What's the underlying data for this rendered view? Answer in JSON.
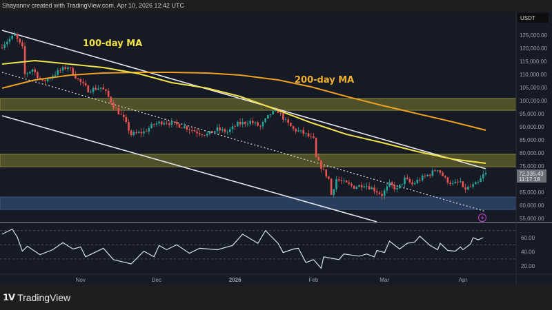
{
  "header": {
    "attribution": "Shayannv created with TradingView.com, Apr 10, 2026 12:42 UTC"
  },
  "footer": {
    "brand": "TradingView"
  },
  "price_axis": {
    "currency": "USDT",
    "last_price": "72,335.43",
    "countdown": "11:17:18"
  },
  "colors": {
    "bg": "#161a25",
    "up": "#26a69a",
    "down": "#ef5350",
    "ma100": "#f2e24a",
    "ma200": "#f0a020",
    "zone_yellow": "#5a5a2a",
    "zone_blue": "#2f4466",
    "rsi": "#d6e0f0",
    "alert": "#b040c0"
  },
  "annotations": {
    "ma100_label": "100-day MA",
    "ma200_label": "200-day MA"
  },
  "icons": {
    "alert": "lightning-bolt-icon",
    "logo": "tradingview-logo-icon"
  },
  "chart_data": [
    {
      "type": "candlestick",
      "price_ticks": [
        "125,000.00",
        "120,000.00",
        "115,000.00",
        "110,000.00",
        "105,000.00",
        "100,000.00",
        "95,000.00",
        "90,000.00",
        "85,000.00",
        "80,000.00",
        "75,000.00",
        "65,000.00",
        "60,000.00",
        "55,000.00"
      ],
      "price_tick_values": [
        125000,
        120000,
        115000,
        110000,
        105000,
        100000,
        95000,
        90000,
        85000,
        80000,
        75000,
        65000,
        60000,
        55000
      ],
      "ylim": [
        53500,
        128000
      ],
      "x_ticks": [
        {
          "label": "Nov",
          "date": "2025-11-01"
        },
        {
          "label": "Dec",
          "date": "2025-12-01"
        },
        {
          "label": "2026",
          "date": "2026-01-01"
        },
        {
          "label": "Feb",
          "date": "2026-02-01"
        },
        {
          "label": "Mar",
          "date": "2026-03-01"
        },
        {
          "label": "Apr",
          "date": "2026-04-01"
        }
      ],
      "close": [
        [
          "2025-10-01",
          121000
        ],
        [
          "2025-10-02",
          122000
        ],
        [
          "2025-10-06",
          125000
        ],
        [
          "2025-10-09",
          120000
        ],
        [
          "2025-10-10",
          110000
        ],
        [
          "2025-10-13",
          112000
        ],
        [
          "2025-10-17",
          107000
        ],
        [
          "2025-10-23",
          111000
        ],
        [
          "2025-10-27",
          113000
        ],
        [
          "2025-10-31",
          108000
        ],
        [
          "2025-11-04",
          104000
        ],
        [
          "2025-11-09",
          105000
        ],
        [
          "2025-11-11",
          103000
        ],
        [
          "2025-11-14",
          98000
        ],
        [
          "2025-11-18",
          93000
        ],
        [
          "2025-11-21",
          87000
        ],
        [
          "2025-11-26",
          88000
        ],
        [
          "2025-11-30",
          91000
        ],
        [
          "2025-12-04",
          92000
        ],
        [
          "2025-12-08",
          91000
        ],
        [
          "2025-12-12",
          90000
        ],
        [
          "2025-12-17",
          88000
        ],
        [
          "2025-12-21",
          87000
        ],
        [
          "2025-12-25",
          89000
        ],
        [
          "2025-12-29",
          88000
        ],
        [
          "2026-01-02",
          91000
        ],
        [
          "2026-01-07",
          92000
        ],
        [
          "2026-01-11",
          90000
        ],
        [
          "2026-01-15",
          95000
        ],
        [
          "2026-01-18",
          96000
        ],
        [
          "2026-01-21",
          92000
        ],
        [
          "2026-01-24",
          89000
        ],
        [
          "2026-01-27",
          88000
        ],
        [
          "2026-01-29",
          87000
        ],
        [
          "2026-02-01",
          85000
        ],
        [
          "2026-02-02",
          78000
        ],
        [
          "2026-02-05",
          73000
        ],
        [
          "2026-02-07",
          70000
        ],
        [
          "2026-02-08",
          64000
        ],
        [
          "2026-02-10",
          70000
        ],
        [
          "2026-02-12",
          69000
        ],
        [
          "2026-02-17",
          67000
        ],
        [
          "2026-02-21",
          68000
        ],
        [
          "2026-02-25",
          66000
        ],
        [
          "2026-02-28",
          64000
        ],
        [
          "2026-03-03",
          68000
        ],
        [
          "2026-03-06",
          66000
        ],
        [
          "2026-03-09",
          70000
        ],
        [
          "2026-03-12",
          68000
        ],
        [
          "2026-03-15",
          70000
        ],
        [
          "2026-03-19",
          72000
        ],
        [
          "2026-03-22",
          74000
        ],
        [
          "2026-03-25",
          70000
        ],
        [
          "2026-03-28",
          68000
        ],
        [
          "2026-03-31",
          69000
        ],
        [
          "2026-04-01",
          66000
        ],
        [
          "2026-04-04",
          67000
        ],
        [
          "2026-04-07",
          68500
        ],
        [
          "2026-04-09",
          71500
        ],
        [
          "2026-04-10",
          72335.43
        ]
      ],
      "ma100": [
        [
          "2025-10-01",
          113950
        ],
        [
          "2025-10-14",
          115260
        ],
        [
          "2025-11-10",
          112630
        ],
        [
          "2025-11-24",
          110260
        ],
        [
          "2025-12-07",
          106840
        ],
        [
          "2025-12-21",
          104740
        ],
        [
          "2026-01-03",
          101580
        ],
        [
          "2026-01-18",
          96320
        ],
        [
          "2026-01-31",
          91580
        ],
        [
          "2026-02-14",
          87110
        ],
        [
          "2026-02-28",
          83950
        ],
        [
          "2026-03-14",
          80530
        ],
        [
          "2026-03-28",
          77630
        ],
        [
          "2026-04-10",
          76050
        ]
      ],
      "ma200": [
        [
          "2025-10-01",
          104740
        ],
        [
          "2025-10-14",
          107890
        ],
        [
          "2025-10-28",
          109740
        ],
        [
          "2025-11-10",
          110530
        ],
        [
          "2025-11-24",
          110790
        ],
        [
          "2025-12-07",
          110790
        ],
        [
          "2025-12-21",
          110530
        ],
        [
          "2026-01-03",
          109740
        ],
        [
          "2026-01-18",
          107890
        ],
        [
          "2026-01-31",
          105260
        ],
        [
          "2026-02-14",
          101580
        ],
        [
          "2026-02-28",
          98160
        ],
        [
          "2026-03-14",
          95000
        ],
        [
          "2026-03-28",
          91840
        ],
        [
          "2026-04-10",
          88680
        ]
      ],
      "trendlines": [
        {
          "style": "solid",
          "from": [
            "2025-10-01",
            126840
          ],
          "to": [
            "2026-04-10",
            73950
          ]
        },
        {
          "style": "solid",
          "from": [
            "2025-10-01",
            94200
          ],
          "to": [
            "2026-02-26",
            53680
          ]
        },
        {
          "style": "dotted",
          "from": [
            "2025-10-01",
            110800
          ],
          "to": [
            "2026-04-10",
            57630
          ]
        }
      ],
      "zones": [
        {
          "color": "yellow",
          "top": 100800,
          "bottom": 96300
        },
        {
          "color": "yellow",
          "top": 79500,
          "bottom": 74700
        },
        {
          "color": "blue",
          "top": 63150,
          "bottom": 58400
        }
      ]
    },
    {
      "type": "line",
      "ylim": [
        10,
        80
      ],
      "y_ticks": [
        "60.00",
        "40.00",
        "20.00"
      ],
      "y_tick_values": [
        60,
        40,
        20
      ],
      "levels": [
        70,
        50,
        30
      ],
      "values": [
        [
          "2025-10-01",
          65
        ],
        [
          "2025-10-05",
          72
        ],
        [
          "2025-10-07",
          61
        ],
        [
          "2025-10-09",
          41
        ],
        [
          "2025-10-11",
          48
        ],
        [
          "2025-10-16",
          36
        ],
        [
          "2025-10-21",
          43
        ],
        [
          "2025-10-25",
          53
        ],
        [
          "2025-10-29",
          44
        ],
        [
          "2025-11-01",
          47
        ],
        [
          "2025-11-03",
          33
        ],
        [
          "2025-11-10",
          45
        ],
        [
          "2025-11-14",
          29
        ],
        [
          "2025-11-21",
          23
        ],
        [
          "2025-11-26",
          41
        ],
        [
          "2025-11-30",
          33
        ],
        [
          "2025-12-02",
          49
        ],
        [
          "2025-12-05",
          43
        ],
        [
          "2025-12-09",
          50
        ],
        [
          "2025-12-14",
          38
        ],
        [
          "2025-12-18",
          45
        ],
        [
          "2025-12-25",
          43
        ],
        [
          "2025-12-31",
          49
        ],
        [
          "2026-01-04",
          65
        ],
        [
          "2026-01-10",
          52
        ],
        [
          "2026-01-13",
          70
        ],
        [
          "2026-01-18",
          52
        ],
        [
          "2026-01-20",
          39
        ],
        [
          "2026-01-24",
          44
        ],
        [
          "2026-01-26",
          45
        ],
        [
          "2026-01-29",
          25
        ],
        [
          "2026-02-01",
          29
        ],
        [
          "2026-02-04",
          17
        ],
        [
          "2026-02-05",
          33
        ],
        [
          "2026-02-11",
          29
        ],
        [
          "2026-02-13",
          37
        ],
        [
          "2026-02-19",
          34
        ],
        [
          "2026-02-22",
          37
        ],
        [
          "2026-02-25",
          33
        ],
        [
          "2026-02-26",
          42
        ],
        [
          "2026-03-01",
          39
        ],
        [
          "2026-03-03",
          55
        ],
        [
          "2026-03-07",
          44
        ],
        [
          "2026-03-10",
          52
        ],
        [
          "2026-03-13",
          54
        ],
        [
          "2026-03-15",
          62
        ],
        [
          "2026-03-19",
          49
        ],
        [
          "2026-03-22",
          43
        ],
        [
          "2026-03-23",
          52
        ],
        [
          "2026-03-26",
          42
        ],
        [
          "2026-03-29",
          41
        ],
        [
          "2026-03-31",
          47
        ],
        [
          "2026-04-01",
          43
        ],
        [
          "2026-04-04",
          51
        ],
        [
          "2026-04-05",
          60
        ],
        [
          "2026-04-07",
          57
        ],
        [
          "2026-04-09",
          60
        ]
      ]
    }
  ]
}
